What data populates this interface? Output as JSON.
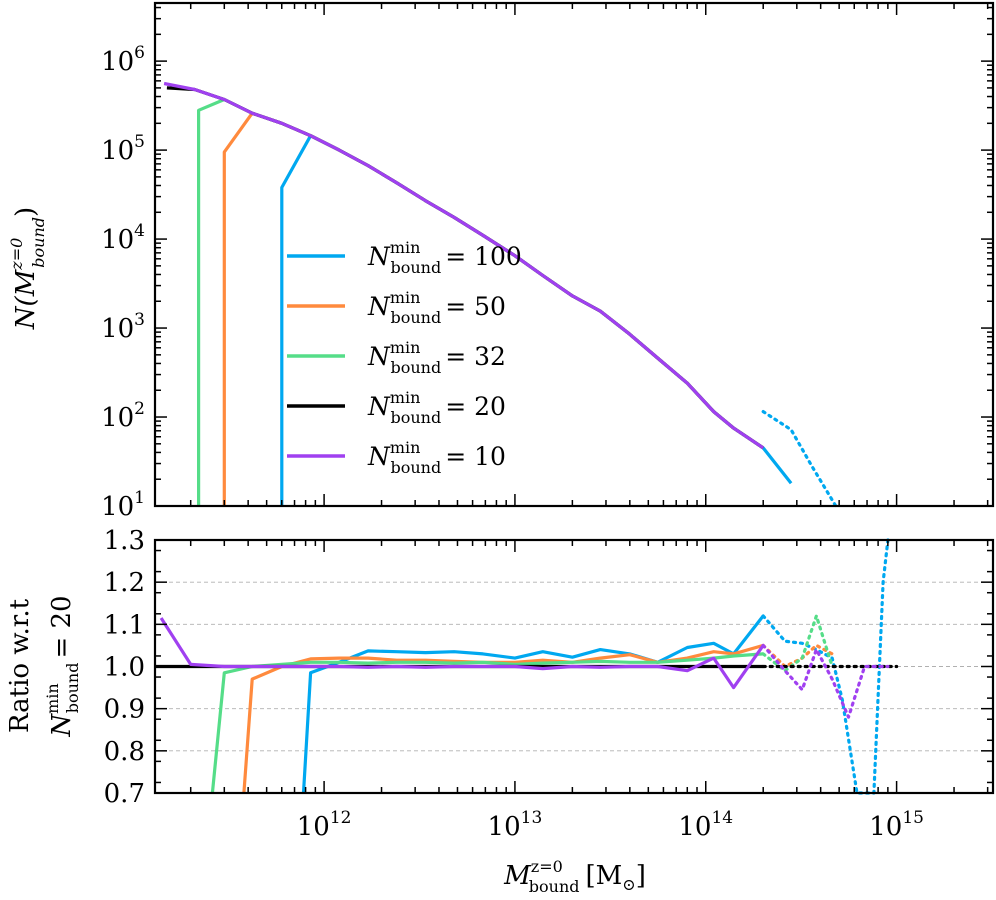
{
  "chart_data": [
    {
      "type": "line",
      "panel": "top",
      "title": "",
      "ylabel": "N(M_bound^{z=0})",
      "ylabel_parts": {
        "base": "N(M",
        "sup": "z=0",
        "sub": "bound",
        "close": ")"
      },
      "xscale": "log",
      "yscale": "log",
      "xlim": [
        130000000000.0,
        3200000000000000.0
      ],
      "ylim": [
        10,
        4500000.0
      ],
      "ytick_exponents": [
        "6",
        "5",
        "4",
        "3",
        "2",
        "1"
      ],
      "legend_position": "center-left",
      "series": [
        {
          "name": "N_bound^min = 100",
          "label_parts": {
            "sup": "min",
            "sub": "bound",
            "value": "= 100"
          },
          "color": "#00a8f0",
          "x": [
            600000000000.0,
            600000000000.0,
            850000000000.0,
            1200000000000.0,
            1700000000000.0,
            2400000000000.0,
            3400000000000.0,
            4800000000000.0,
            6800000000000.0,
            10000000000000.0,
            14000000000000.0,
            20000000000000.0,
            28000000000000.0,
            40000000000000.0,
            56000000000000.0,
            80000000000000.0,
            110000000000000.0,
            140000000000000.0,
            200000000000000.0,
            280000000000000.0
          ],
          "y": [
            10,
            38000.0,
            145000.0,
            100000.0,
            67000.0,
            43000.0,
            27000.0,
            17500.0,
            11000.0,
            6500.0,
            3900.0,
            2300.0,
            1550.0,
            850.0,
            460.0,
            240.0,
            115.0,
            75.0,
            45.0,
            18.0
          ],
          "solid_until": 200000000000000.0,
          "dotted_from": 200000000000000.0,
          "dotted_x": [
            200000000000000.0,
            280000000000000.0,
            360000000000000.0,
            480000000000000.0
          ],
          "dotted_y": [
            115,
            72,
            28,
            10
          ]
        },
        {
          "name": "N_bound^min = 50",
          "label_parts": {
            "sup": "min",
            "sub": "bound",
            "value": "= 50"
          },
          "color": "#ff8a3d",
          "x": [
            300000000000.0,
            300000000000.0,
            420000000000.0,
            600000000000.0,
            850000000000.0,
            1200000000000.0,
            1700000000000.0,
            2400000000000.0,
            3400000000000.0,
            4800000000000.0,
            6800000000000.0,
            10000000000000.0,
            14000000000000.0,
            20000000000000.0,
            28000000000000.0,
            40000000000000.0,
            56000000000000.0,
            80000000000000.0,
            110000000000000.0,
            140000000000000.0,
            200000000000000.0
          ],
          "y": [
            10,
            95000.0,
            260000.0,
            200000.0,
            145000.0,
            100000.0,
            67000.0,
            43000.0,
            27000.0,
            17500.0,
            11000.0,
            6500.0,
            3900.0,
            2300.0,
            1550.0,
            850.0,
            460.0,
            240.0,
            115.0,
            75.0,
            45.0
          ]
        },
        {
          "name": "N_bound^min = 32",
          "label_parts": {
            "sup": "min",
            "sub": "bound",
            "value": "= 32"
          },
          "color": "#55dd88",
          "x": [
            220000000000.0,
            220000000000.0,
            300000000000.0,
            420000000000.0,
            600000000000.0,
            850000000000.0,
            1200000000000.0,
            1700000000000.0,
            2400000000000.0,
            3400000000000.0,
            4800000000000.0,
            6800000000000.0,
            10000000000000.0,
            14000000000000.0,
            20000000000000.0,
            28000000000000.0,
            40000000000000.0,
            56000000000000.0,
            80000000000000.0,
            110000000000000.0,
            140000000000000.0,
            200000000000000.0
          ],
          "y": [
            10,
            280000.0,
            370000.0,
            260000.0,
            200000.0,
            145000.0,
            100000.0,
            67000.0,
            43000.0,
            27000.0,
            17500.0,
            11000.0,
            6500.0,
            3900.0,
            2300.0,
            1550.0,
            850.0,
            460.0,
            240.0,
            115.0,
            75.0,
            45.0
          ]
        },
        {
          "name": "N_bound^min = 20",
          "label_parts": {
            "sup": "min",
            "sub": "bound",
            "value": "= 20"
          },
          "color": "#000000",
          "x": [
            150000000000.0,
            210000000000.0,
            300000000000.0,
            420000000000.0,
            600000000000.0,
            850000000000.0,
            1200000000000.0,
            1700000000000.0,
            2400000000000.0,
            3400000000000.0,
            4800000000000.0,
            6800000000000.0,
            10000000000000.0,
            14000000000000.0,
            20000000000000.0,
            28000000000000.0,
            40000000000000.0,
            56000000000000.0,
            80000000000000.0,
            110000000000000.0,
            140000000000000.0,
            200000000000000.0
          ],
          "y": [
            500000.0,
            480000.0,
            370000.0,
            260000.0,
            200000.0,
            145000.0,
            100000.0,
            67000.0,
            43000.0,
            27000.0,
            17500.0,
            11000.0,
            6500.0,
            3900.0,
            2300.0,
            1550.0,
            850.0,
            460.0,
            240.0,
            115.0,
            75.0,
            45.0
          ]
        },
        {
          "name": "N_bound^min = 10",
          "label_parts": {
            "sup": "min",
            "sub": "bound",
            "value": "= 10"
          },
          "color": "#a040f0",
          "x": [
            145000000000.0,
            210000000000.0,
            300000000000.0,
            420000000000.0,
            600000000000.0,
            850000000000.0,
            1200000000000.0,
            1700000000000.0,
            2400000000000.0,
            3400000000000.0,
            4800000000000.0,
            6800000000000.0,
            10000000000000.0,
            14000000000000.0,
            20000000000000.0,
            28000000000000.0,
            40000000000000.0,
            56000000000000.0,
            80000000000000.0,
            110000000000000.0,
            140000000000000.0,
            200000000000000.0
          ],
          "y": [
            560000.0,
            480000.0,
            370000.0,
            260000.0,
            200000.0,
            145000.0,
            100000.0,
            67000.0,
            43000.0,
            27000.0,
            17500.0,
            11000.0,
            6500.0,
            3900.0,
            2300.0,
            1550.0,
            850.0,
            460.0,
            240.0,
            115.0,
            75.0,
            45.0
          ]
        }
      ]
    },
    {
      "type": "line",
      "panel": "bottom",
      "ylabel_line1": "Ratio w.r.t",
      "ylabel_line2_parts": {
        "sup": "min",
        "sub": "bound",
        "value": "= 20"
      },
      "xlabel_parts": {
        "base": "M",
        "sup": "z=0",
        "sub": "bound",
        "unit": "[M",
        "unit_sub": "⊙",
        "close": "]"
      },
      "xscale": "log",
      "xlim": [
        130000000000.0,
        3200000000000000.0
      ],
      "ylim": [
        0.7,
        1.3
      ],
      "yticks": [
        "0.7",
        "0.8",
        "0.9",
        "1.0",
        "1.1",
        "1.2",
        "1.3"
      ],
      "xtick_exponents": [
        "12",
        "13",
        "14",
        "15"
      ],
      "grid": true,
      "series": [
        {
          "name": "N_bound^min = 100",
          "color": "#00a8f0",
          "solid_x": [
            780000000000.0,
            850000000000.0,
            1200000000000.0,
            1700000000000.0,
            2400000000000.0,
            3400000000000.0,
            4800000000000.0,
            6800000000000.0,
            10000000000000.0,
            14000000000000.0,
            20000000000000.0,
            28000000000000.0,
            40000000000000.0,
            56000000000000.0,
            80000000000000.0,
            110000000000000.0,
            140000000000000.0,
            200000000000000.0
          ],
          "solid_y": [
            0.7,
            0.985,
            1.01,
            1.037,
            1.035,
            1.033,
            1.035,
            1.03,
            1.02,
            1.035,
            1.022,
            1.04,
            1.03,
            1.01,
            1.045,
            1.055,
            1.03,
            1.12
          ],
          "dotted_x": [
            200000000000000.0,
            260000000000000.0,
            320000000000000.0,
            380000000000000.0,
            460000000000000.0,
            520000000000000.0,
            620000000000000.0,
            700000000000000.0,
            760000000000000.0,
            850000000000000.0,
            900000000000000.0
          ],
          "dotted_y": [
            1.12,
            1.06,
            1.055,
            1.04,
            1.02,
            0.92,
            0.7,
            0.7,
            0.7,
            1.2,
            1.3
          ]
        },
        {
          "name": "N_bound^min = 50",
          "color": "#ff8a3d",
          "solid_x": [
            380000000000.0,
            420000000000.0,
            600000000000.0,
            850000000000.0,
            1200000000000.0,
            1700000000000.0,
            2400000000000.0,
            3400000000000.0,
            4800000000000.0,
            6800000000000.0,
            10000000000000.0,
            14000000000000.0,
            20000000000000.0,
            28000000000000.0,
            40000000000000.0,
            56000000000000.0,
            80000000000000.0,
            110000000000000.0,
            140000000000000.0,
            200000000000000.0
          ],
          "solid_y": [
            0.7,
            0.97,
            1.0,
            1.018,
            1.02,
            1.02,
            1.015,
            1.015,
            1.012,
            1.01,
            1.01,
            1.015,
            1.01,
            1.02,
            1.028,
            1.01,
            1.02,
            1.035,
            1.03,
            1.05
          ],
          "dotted_x": [
            200000000000000.0,
            260000000000000.0,
            320000000000000.0,
            380000000000000.0,
            460000000000000.0
          ],
          "dotted_y": [
            1.05,
            1.0,
            1.02,
            1.05,
            1.03
          ]
        },
        {
          "name": "N_bound^min = 32",
          "color": "#55dd88",
          "solid_x": [
            260000000000.0,
            300000000000.0,
            420000000000.0,
            600000000000.0,
            850000000000.0,
            1200000000000.0,
            1700000000000.0,
            2400000000000.0,
            3400000000000.0,
            4800000000000.0,
            6800000000000.0,
            10000000000000.0,
            14000000000000.0,
            20000000000000.0,
            28000000000000.0,
            40000000000000.0,
            56000000000000.0,
            80000000000000.0,
            110000000000000.0,
            140000000000000.0,
            200000000000000.0
          ],
          "solid_y": [
            0.7,
            0.985,
            1.0,
            1.005,
            1.01,
            1.01,
            1.008,
            1.01,
            1.01,
            1.008,
            1.01,
            1.005,
            1.008,
            1.01,
            1.012,
            1.01,
            1.01,
            1.015,
            1.02,
            1.025,
            1.03
          ],
          "dotted_x": [
            200000000000000.0,
            260000000000000.0,
            320000000000000.0,
            380000000000000.0,
            460000000000000.0
          ],
          "dotted_y": [
            1.03,
            0.99,
            1.02,
            1.12,
            1.0
          ]
        },
        {
          "name": "N_bound^min = 20",
          "color": "#000000",
          "solid_x": [
            130000000000.0,
            200000000000000.0
          ],
          "solid_y": [
            1.0,
            1.0
          ],
          "dotted_x": [
            200000000000000.0,
            1000000000000000.0
          ],
          "dotted_y": [
            1.0,
            1.0
          ]
        },
        {
          "name": "N_bound^min = 10",
          "color": "#a040f0",
          "solid_x": [
            140000000000.0,
            200000000000.0,
            300000000000.0,
            420000000000.0,
            600000000000.0,
            850000000000.0,
            1200000000000.0,
            1700000000000.0,
            2400000000000.0,
            3400000000000.0,
            4800000000000.0,
            6800000000000.0,
            10000000000000.0,
            14000000000000.0,
            20000000000000.0,
            28000000000000.0,
            40000000000000.0,
            56000000000000.0,
            80000000000000.0,
            110000000000000.0,
            140000000000000.0,
            200000000000000.0
          ],
          "solid_y": [
            1.115,
            1.005,
            1.0,
            1.0,
            1.0,
            1.0,
            1.0,
            0.998,
            1.0,
            0.998,
            1.0,
            1.0,
            1.0,
            0.995,
            1.0,
            0.998,
            1.0,
            1.0,
            0.99,
            1.02,
            0.95,
            1.05
          ],
          "dotted_x": [
            200000000000000.0,
            260000000000000.0,
            320000000000000.0,
            380000000000000.0,
            460000000000000.0,
            560000000000000.0,
            680000000000000.0,
            800000000000000.0,
            900000000000000.0
          ],
          "dotted_y": [
            1.05,
            0.99,
            0.945,
            1.04,
            0.97,
            0.88,
            1.0,
            1.0,
            1.0
          ]
        }
      ]
    }
  ]
}
